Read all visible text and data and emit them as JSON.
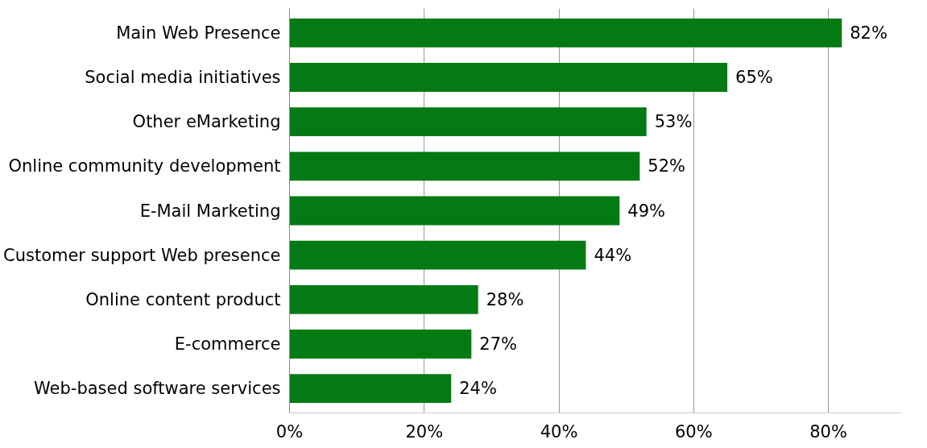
{
  "chart_data": {
    "type": "bar",
    "orientation": "horizontal",
    "categories": [
      "Main Web Presence",
      "Social media initiatives",
      "Other eMarketing",
      "Online community development",
      "E-Mail Marketing",
      "Customer support Web presence",
      "Online content product",
      "E-commerce",
      "Web-based software services"
    ],
    "values": [
      82,
      65,
      53,
      52,
      49,
      44,
      28,
      27,
      24
    ],
    "value_labels": [
      "82%",
      "65%",
      "53%",
      "52%",
      "49%",
      "44%",
      "28%",
      "27%",
      "24%"
    ],
    "color": "#037a14",
    "xlim": [
      0,
      91
    ],
    "xticks": [
      {
        "value": 0,
        "label": "0%"
      },
      {
        "value": 20,
        "label": "20%"
      },
      {
        "value": 40,
        "label": "40%"
      },
      {
        "value": 60,
        "label": "60%"
      },
      {
        "value": 80,
        "label": "80%"
      }
    ],
    "grid": "x"
  }
}
